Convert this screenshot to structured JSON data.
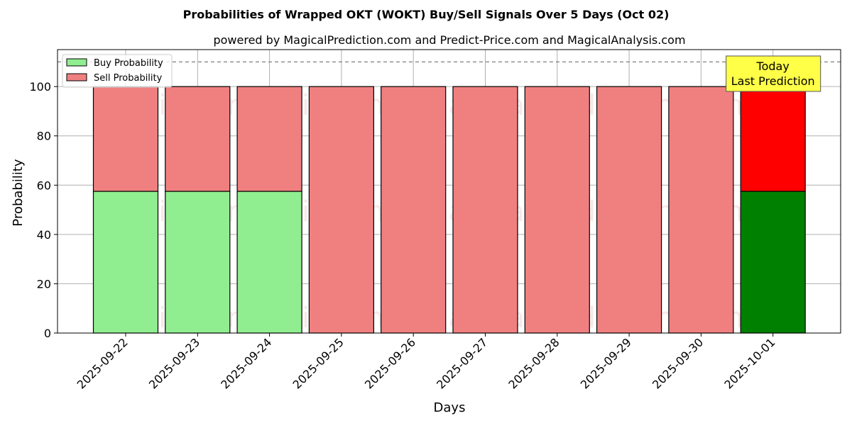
{
  "chart_data": {
    "type": "bar",
    "stacked": true,
    "title": "Probabilities of Wrapped OKT (WOKT) Buy/Sell Signals Over 5 Days (Oct 02)",
    "subtitle": "powered by MagicalPrediction.com and Predict-Price.com and MagicalAnalysis.com",
    "xlabel": "Days",
    "ylabel": "Probability",
    "ylim": [
      0,
      115
    ],
    "yticks": [
      0,
      20,
      40,
      60,
      80,
      100
    ],
    "grid": true,
    "legend_position": "top-left",
    "reference_line": 110,
    "categories": [
      "2025-09-22",
      "2025-09-23",
      "2025-09-24",
      "2025-09-25",
      "2025-09-26",
      "2025-09-27",
      "2025-09-28",
      "2025-09-29",
      "2025-09-30",
      "2025-10-01"
    ],
    "series": [
      {
        "name": "Buy Probability",
        "values": [
          57.5,
          57.5,
          57.5,
          0,
          0,
          0,
          0,
          0,
          0,
          57.5
        ],
        "color": "#90ee90",
        "highlight_color": "#008000"
      },
      {
        "name": "Sell Probability",
        "values": [
          42.5,
          42.5,
          42.5,
          100,
          100,
          100,
          100,
          100,
          100,
          42.5
        ],
        "color": "#f08080",
        "highlight_color": "#ff0000"
      }
    ],
    "highlight_index": 9,
    "annotation": {
      "lines": [
        "Today",
        "Last Prediction"
      ],
      "color": "#ffff47"
    },
    "watermarks": [
      "MagicalAnalysis.com",
      "MagicalPrediction.com"
    ]
  }
}
